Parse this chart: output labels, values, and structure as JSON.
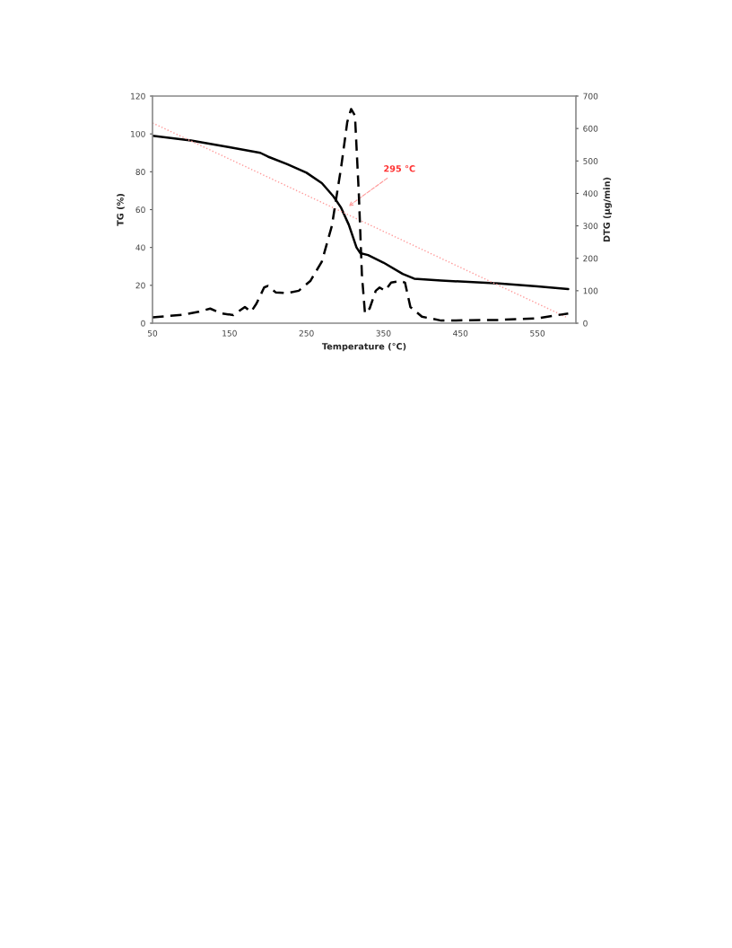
{
  "chart_data": {
    "type": "line",
    "xlabel": "Temperature (°C)",
    "ylabel": "TG (%)",
    "y2label": "DTG (µg/min)",
    "xlim": [
      50,
      600
    ],
    "xticks": [
      50,
      150,
      250,
      350,
      450,
      550
    ],
    "ylim": [
      0,
      120
    ],
    "yticks": [
      0,
      20,
      40,
      60,
      80,
      100,
      120
    ],
    "y2lim": [
      0,
      700
    ],
    "y2ticks": [
      0,
      100,
      200,
      300,
      400,
      500,
      600,
      700
    ],
    "grid": false,
    "legend": false,
    "marker": "none",
    "series": [
      {
        "color": "#000000",
        "line_style": "solid",
        "x": [
          50,
          100,
          150,
          190,
          200,
          225,
          250,
          270,
          285,
          295,
          305,
          315,
          320,
          330,
          350,
          375,
          390,
          425,
          500,
          550,
          590
        ],
        "values": [
          99,
          96.5,
          93,
          90,
          88,
          84,
          79.5,
          74,
          67,
          61,
          52,
          40,
          37,
          36,
          32,
          26,
          23.5,
          22.5,
          21,
          19.5,
          18
        ]
      },
      {
        "color": "#000000",
        "line_style": "dashed",
        "axis": "y2",
        "x": [
          50,
          70,
          90,
          110,
          125,
          140,
          155,
          170,
          178,
          185,
          195,
          200,
          210,
          225,
          240,
          255,
          270,
          283,
          295,
          303,
          308,
          313,
          318,
          322,
          326,
          332,
          340,
          345,
          352,
          360,
          372,
          378,
          385,
          400,
          425,
          500,
          550,
          590
        ],
        "values": [
          18,
          22,
          26,
          35,
          45,
          30,
          25,
          50,
          35,
          60,
          110,
          115,
          95,
          93,
          100,
          130,
          190,
          300,
          480,
          620,
          660,
          640,
          400,
          150,
          30,
          45,
          100,
          110,
          100,
          125,
          130,
          125,
          50,
          20,
          8,
          10,
          15,
          30
        ]
      },
      {
        "type": "line",
        "color": "#ff9999",
        "line_style": "dotted",
        "x": [
          50,
          587
        ],
        "values": [
          105.8,
          3.3
        ]
      }
    ],
    "annotations": [
      {
        "text": "295 °C",
        "x": 302,
        "y": 61
      }
    ]
  }
}
